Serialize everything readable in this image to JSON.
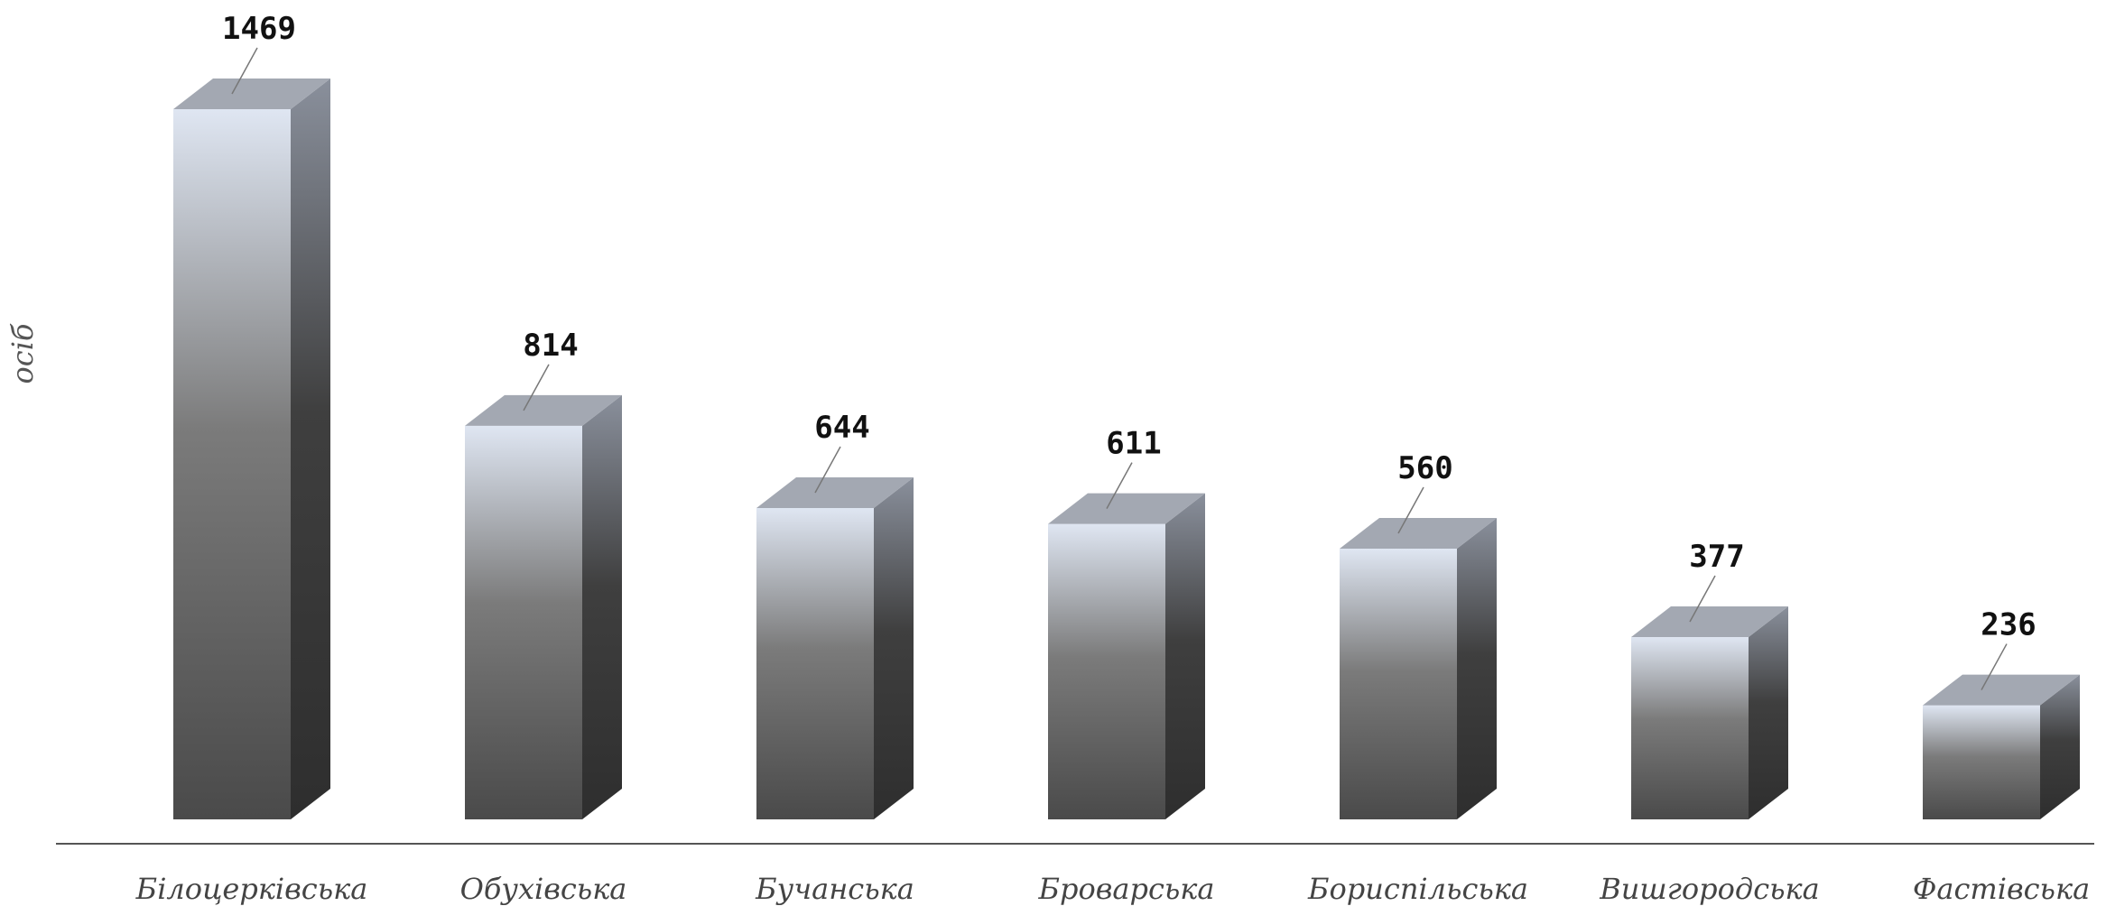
{
  "chart_data": {
    "type": "bar",
    "categories": [
      "Білоцерківська",
      "Обухівська",
      "Бучанська",
      "Броварська",
      "Бориспільська",
      "Вишгородська",
      "Фастівська"
    ],
    "values": [
      1469,
      814,
      644,
      611,
      560,
      377,
      236
    ],
    "title": "",
    "xlabel": "",
    "ylabel": "осіб",
    "ylim": [
      0,
      1469
    ],
    "grid": false,
    "legend": "none",
    "colors": {
      "front_top": "#dfe6f2",
      "front_mid": "#7b7b7b",
      "front_bottom": "#4a4a4a",
      "side_top": "#8a909c",
      "side_bottom": "#2e2e2e",
      "top_face": "#a3a8b2",
      "axis": "#555555"
    }
  }
}
